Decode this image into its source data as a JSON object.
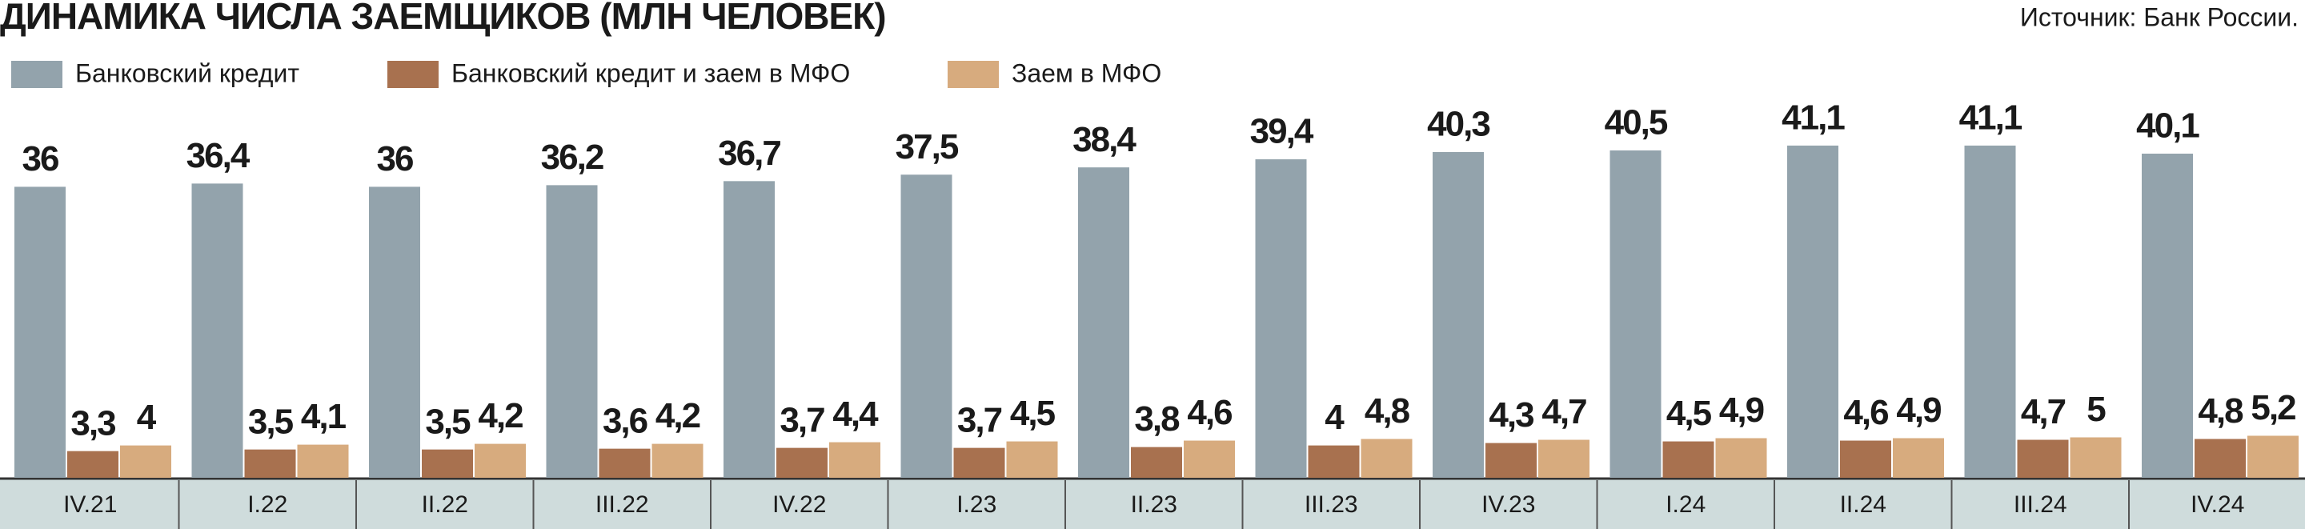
{
  "chart_data": {
    "type": "bar",
    "title": "ДИНАМИКА ЧИСЛА ЗАЕМЩИКОВ (МЛН ЧЕЛОВЕК)",
    "source": "Источник: Банк России.",
    "categories": [
      "IV.21",
      "I.22",
      "II.22",
      "III.22",
      "IV.22",
      "I.23",
      "II.23",
      "III.23",
      "IV.23",
      "I.24",
      "II.24",
      "III.24",
      "IV.24"
    ],
    "series": [
      {
        "name": "Банковский кредит",
        "color": "#93a3ac",
        "values": [
          36,
          36.4,
          36,
          36.2,
          36.7,
          37.5,
          38.4,
          39.4,
          40.3,
          40.5,
          41.1,
          41.1,
          40.1
        ],
        "value_labels": [
          "36",
          "36,4",
          "36",
          "36,2",
          "36,7",
          "37,5",
          "38,4",
          "39,4",
          "40,3",
          "40,5",
          "41,1",
          "41,1",
          "40,1"
        ]
      },
      {
        "name": "Банковский кредит и заем в МФО",
        "color": "#a8714f",
        "values": [
          3.3,
          3.5,
          3.5,
          3.6,
          3.7,
          3.7,
          3.8,
          4,
          4.3,
          4.5,
          4.6,
          4.7,
          4.8
        ],
        "value_labels": [
          "3,3",
          "3,5",
          "3,5",
          "3,6",
          "3,7",
          "3,7",
          "3,8",
          "4",
          "4,3",
          "4,5",
          "4,6",
          "4,7",
          "4,8"
        ]
      },
      {
        "name": "Заем в МФО",
        "color": "#d7ab7e",
        "values": [
          4,
          4.1,
          4.2,
          4.2,
          4.4,
          4.5,
          4.6,
          4.8,
          4.7,
          4.9,
          4.9,
          5,
          5.2
        ],
        "value_labels": [
          "4",
          "4,1",
          "4,2",
          "4,2",
          "4,4",
          "4,5",
          "4,6",
          "4,8",
          "4,7",
          "4,9",
          "4,9",
          "5",
          "5,2"
        ]
      }
    ]
  }
}
